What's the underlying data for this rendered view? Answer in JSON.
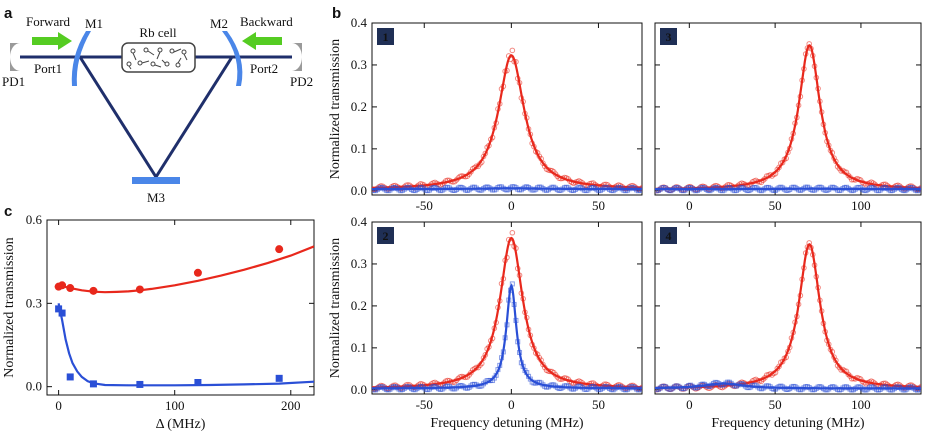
{
  "panel_labels": {
    "a": "a",
    "b": "b",
    "c": "c"
  },
  "diagram": {
    "forward": "Forward",
    "backward": "Backward",
    "m1": "M1",
    "m2": "M2",
    "m3": "M3",
    "rb_cell": "Rb cell",
    "port1": "Port1",
    "port2": "Port2",
    "pd1": "PD1",
    "pd2": "PD2",
    "colors": {
      "arrow": "#55cc22",
      "mirror": "#4a86e8",
      "beam": "#1f2f6b",
      "detector": "#9a9a9a"
    }
  },
  "chart_data": [
    {
      "id": "c",
      "type": "scatter",
      "title": "",
      "xlabel": "Δ (MHz)",
      "ylabel": "Normalized transmission",
      "xlim": [
        -10,
        220
      ],
      "ylim": [
        -0.03,
        0.6
      ],
      "xticks": [
        0,
        100,
        200
      ],
      "xtick_labels": [
        "0",
        "100",
        "200"
      ],
      "yticks": [
        0,
        0.3,
        0.6
      ],
      "ytick_labels": [
        "0.0",
        "0.3",
        "0.6"
      ],
      "series": [
        {
          "name": "forward",
          "color": "#e8281c",
          "marker": "circle",
          "x": [
            0,
            3,
            10,
            30,
            70,
            120,
            190
          ],
          "y": [
            0.36,
            0.365,
            0.355,
            0.345,
            0.35,
            0.41,
            0.495
          ],
          "fit_x": [
            0,
            5,
            10,
            20,
            30,
            40,
            50,
            60,
            70,
            80,
            100,
            120,
            140,
            160,
            180,
            200,
            220
          ],
          "fit_y": [
            0.362,
            0.36,
            0.355,
            0.347,
            0.342,
            0.34,
            0.341,
            0.343,
            0.347,
            0.352,
            0.365,
            0.381,
            0.4,
            0.421,
            0.445,
            0.472,
            0.505
          ]
        },
        {
          "name": "backward",
          "color": "#2a4fd6",
          "marker": "square",
          "x": [
            0,
            3,
            10,
            30,
            70,
            120,
            190
          ],
          "y": [
            0.28,
            0.265,
            0.035,
            0.01,
            0.008,
            0.015,
            0.03
          ],
          "fit_x": [
            0,
            3,
            6,
            9,
            12,
            16,
            20,
            25,
            30,
            40,
            60,
            80,
            100,
            130,
            160,
            190,
            220
          ],
          "fit_y": [
            0.3,
            0.24,
            0.17,
            0.12,
            0.085,
            0.055,
            0.035,
            0.02,
            0.012,
            0.006,
            0.005,
            0.005,
            0.005,
            0.006,
            0.008,
            0.011,
            0.018
          ]
        }
      ]
    },
    {
      "id": "b1",
      "badge": "1",
      "type": "line",
      "xlabel": "",
      "ylabel": "Normalized transmission",
      "xlim": [
        -80,
        75
      ],
      "ylim": [
        -0.01,
        0.4
      ],
      "xticks": [
        -50,
        0,
        50
      ],
      "xtick_labels": [
        "-50",
        "0",
        "50"
      ],
      "yticks": [
        0,
        0.1,
        0.2,
        0.3,
        0.4
      ],
      "ytick_labels": [
        "0.0",
        "0.1",
        "0.2",
        "0.3",
        "0.4"
      ],
      "series": [
        {
          "name": "forward",
          "color": "#e8281c",
          "marker": "circle",
          "peak": 0.32,
          "center": 0,
          "width": 9,
          "base": 0.003
        },
        {
          "name": "backward",
          "color": "#2a4fd6",
          "marker": "square",
          "peak": 0.002,
          "center": 0,
          "width": 20,
          "base": 0.004
        }
      ]
    },
    {
      "id": "b3",
      "badge": "3",
      "type": "line",
      "xlabel": "",
      "ylabel": "",
      "xlim": [
        -20,
        135
      ],
      "ylim": [
        -0.01,
        0.4
      ],
      "xticks": [
        0,
        50,
        100
      ],
      "xtick_labels": [
        "0",
        "50",
        "100"
      ],
      "yticks": [
        0,
        0.1,
        0.2,
        0.3,
        0.4
      ],
      "ytick_labels": [],
      "series": [
        {
          "name": "forward",
          "color": "#e8281c",
          "marker": "circle",
          "peak": 0.345,
          "center": 70,
          "width": 7.5,
          "base": 0.002
        },
        {
          "name": "backward",
          "color": "#2a4fd6",
          "marker": "square",
          "peak": 0.001,
          "center": 70,
          "width": 20,
          "base": 0.004
        }
      ]
    },
    {
      "id": "b2",
      "badge": "2",
      "type": "line",
      "xlabel": "Frequency detuning (MHz)",
      "ylabel": "Normalized transmission",
      "xlim": [
        -80,
        75
      ],
      "ylim": [
        -0.01,
        0.4
      ],
      "xticks": [
        -50,
        0,
        50
      ],
      "xtick_labels": [
        "-50",
        "0",
        "50"
      ],
      "yticks": [
        0,
        0.1,
        0.2,
        0.3,
        0.4
      ],
      "ytick_labels": [
        "0.0",
        "0.1",
        "0.2",
        "0.3",
        "0.4"
      ],
      "series": [
        {
          "name": "forward",
          "color": "#e8281c",
          "marker": "circle",
          "peak": 0.36,
          "center": 0,
          "width": 8,
          "base": 0.002
        },
        {
          "name": "backward",
          "color": "#2a4fd6",
          "marker": "square",
          "peak": 0.245,
          "center": 0,
          "width": 3.5,
          "base": 0.003
        }
      ]
    },
    {
      "id": "b4",
      "badge": "4",
      "type": "line",
      "xlabel": "Frequency detuning (MHz)",
      "ylabel": "",
      "xlim": [
        -20,
        135
      ],
      "ylim": [
        -0.01,
        0.4
      ],
      "xticks": [
        0,
        50,
        100
      ],
      "xtick_labels": [
        "0",
        "50",
        "100"
      ],
      "yticks": [
        0,
        0.1,
        0.2,
        0.3,
        0.4
      ],
      "ytick_labels": [],
      "series": [
        {
          "name": "forward",
          "color": "#e8281c",
          "marker": "circle",
          "peak": 0.345,
          "center": 70,
          "width": 7.5,
          "base": 0.002
        },
        {
          "name": "backward",
          "color": "#2a4fd6",
          "marker": "square",
          "peak": 0.012,
          "center": 20,
          "width": 14,
          "base": 0.003
        }
      ]
    }
  ]
}
